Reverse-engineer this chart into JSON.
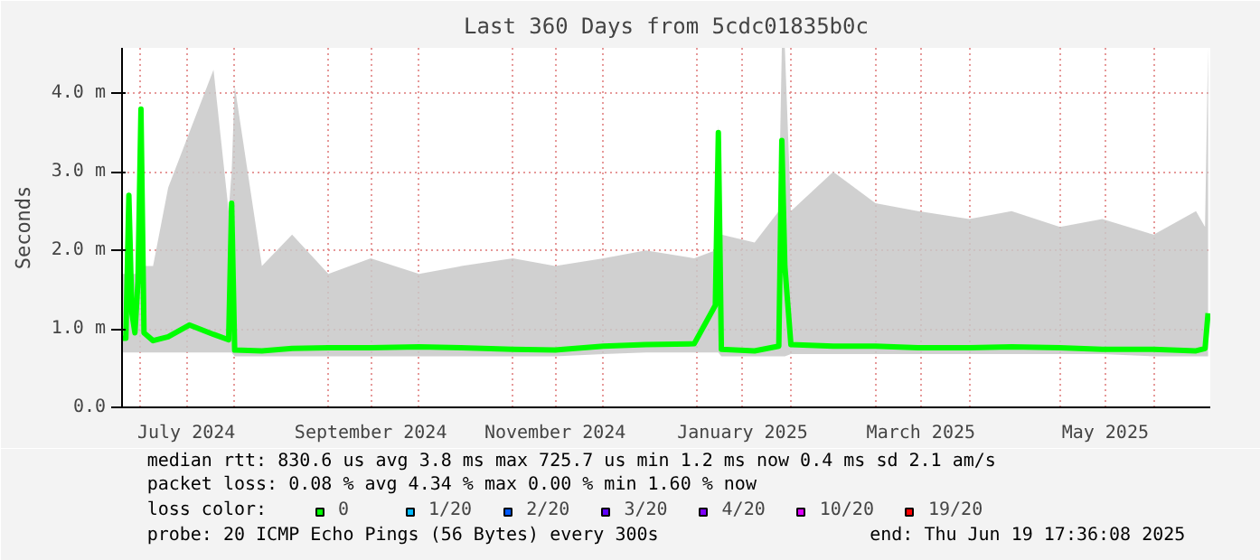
{
  "chart_data": {
    "type": "line",
    "title": "Last 360 Days from 5cdc01835b0c",
    "ylabel": "Seconds",
    "legend_title": "loss color:",
    "legend": "bottom",
    "grid": true,
    "x": [
      "2024-06-25",
      "2024-06-26",
      "2024-06-27",
      "2024-06-28",
      "2024-06-29",
      "2024-06-30",
      "2024-07-01",
      "2024-07-02",
      "2024-07-05",
      "2024-07-10",
      "2024-07-17",
      "2024-07-25",
      "2024-07-30",
      "2024-07-31",
      "2024-08-01",
      "2024-08-10",
      "2024-08-20",
      "2024-09-01",
      "2024-09-15",
      "2024-10-01",
      "2024-10-15",
      "2024-11-01",
      "2024-11-15",
      "2024-12-01",
      "2024-12-15",
      "2024-12-31",
      "2025-01-07",
      "2025-01-08",
      "2025-01-09",
      "2025-01-20",
      "2025-01-28",
      "2025-01-29",
      "2025-01-30",
      "2025-02-01",
      "2025-02-15",
      "2025-03-01",
      "2025-03-15",
      "2025-04-01",
      "2025-04-15",
      "2025-05-01",
      "2025-05-15",
      "2025-06-01",
      "2025-06-15",
      "2025-06-18",
      "2025-06-19"
    ],
    "series": [
      {
        "name": "0",
        "color": "#00ff00",
        "values": [
          0.88,
          0.88,
          2.7,
          1.2,
          0.95,
          1.6,
          3.8,
          0.95,
          0.85,
          0.9,
          1.05,
          0.93,
          0.86,
          2.6,
          0.73,
          0.72,
          0.75,
          0.76,
          0.76,
          0.77,
          0.76,
          0.74,
          0.73,
          0.78,
          0.8,
          0.81,
          1.3,
          3.5,
          0.74,
          0.72,
          0.78,
          3.4,
          1.8,
          0.8,
          0.78,
          0.78,
          0.76,
          0.76,
          0.77,
          0.76,
          0.74,
          0.74,
          0.72,
          0.75,
          1.2
        ],
        "lower": [
          0.7,
          0.7,
          0.7,
          0.7,
          0.7,
          0.7,
          0.7,
          0.7,
          0.7,
          0.7,
          0.7,
          0.7,
          0.7,
          0.7,
          0.65,
          0.65,
          0.65,
          0.65,
          0.65,
          0.65,
          0.65,
          0.65,
          0.65,
          0.68,
          0.7,
          0.7,
          0.7,
          0.7,
          0.65,
          0.65,
          0.65,
          0.65,
          0.65,
          0.68,
          0.68,
          0.68,
          0.68,
          0.68,
          0.68,
          0.68,
          0.68,
          0.65,
          0.65,
          0.65,
          0.65
        ],
        "upper": [
          1.7,
          1.7,
          2.8,
          1.7,
          1.7,
          1.7,
          3.8,
          1.8,
          1.8,
          2.8,
          3.5,
          4.3,
          2.5,
          3.0,
          4.1,
          1.8,
          2.2,
          1.7,
          1.9,
          1.7,
          1.8,
          1.9,
          1.8,
          1.9,
          2.0,
          1.9,
          2.0,
          3.6,
          2.2,
          2.1,
          2.5,
          4.58,
          4.58,
          2.5,
          3.0,
          2.6,
          2.5,
          2.4,
          2.5,
          2.3,
          2.4,
          2.2,
          2.5,
          2.3,
          4.58
        ]
      },
      {
        "name": "1/20",
        "color": "#00b8ff",
        "values": [
          null,
          null,
          null,
          null,
          null,
          null,
          null,
          null,
          null,
          null,
          null,
          null,
          null,
          null,
          null,
          null,
          null,
          null,
          null,
          null,
          null,
          null,
          null,
          null,
          null,
          null,
          null,
          null,
          null,
          null,
          null,
          null,
          null,
          null,
          null,
          null,
          null,
          null,
          null,
          null,
          null,
          null,
          null,
          null,
          null
        ]
      },
      {
        "name": "2/20",
        "color": "#0059ff",
        "values": [
          null,
          null,
          null,
          null,
          null,
          null,
          null,
          null,
          null,
          null,
          null,
          null,
          null,
          null,
          null,
          null,
          null,
          null,
          null,
          null,
          null,
          null,
          null,
          null,
          null,
          null,
          null,
          null,
          null,
          null,
          null,
          null,
          null,
          null,
          null,
          null,
          null,
          null,
          null,
          null,
          null,
          null,
          null,
          null,
          null
        ]
      },
      {
        "name": "3/20",
        "color": "#5e00ff",
        "values": [
          null,
          null,
          null,
          null,
          null,
          null,
          null,
          null,
          null,
          null,
          null,
          null,
          null,
          null,
          null,
          null,
          null,
          null,
          null,
          null,
          null,
          null,
          null,
          null,
          null,
          null,
          null,
          null,
          null,
          null,
          null,
          null,
          null,
          null,
          null,
          null,
          null,
          null,
          null,
          null,
          null,
          null,
          null,
          null,
          null
        ]
      },
      {
        "name": "4/20",
        "color": "#7e00ff",
        "values": [
          null,
          null,
          null,
          null,
          null,
          null,
          null,
          null,
          null,
          null,
          null,
          null,
          null,
          null,
          null,
          null,
          null,
          null,
          null,
          null,
          null,
          null,
          null,
          null,
          null,
          null,
          null,
          null,
          null,
          null,
          null,
          null,
          null,
          null,
          null,
          null,
          null,
          null,
          null,
          null,
          null,
          null,
          null,
          null,
          null
        ]
      },
      {
        "name": "10/20",
        "color": "#dd00ff",
        "values": [
          null,
          null,
          null,
          null,
          null,
          null,
          null,
          null,
          null,
          null,
          null,
          null,
          null,
          null,
          null,
          null,
          null,
          null,
          null,
          null,
          null,
          null,
          null,
          null,
          null,
          null,
          null,
          null,
          null,
          null,
          null,
          null,
          null,
          null,
          null,
          null,
          null,
          null,
          null,
          null,
          null,
          null,
          null,
          null,
          null
        ]
      },
      {
        "name": "19/20",
        "color": "#ff0000",
        "values": [
          null,
          null,
          null,
          null,
          null,
          null,
          null,
          null,
          null,
          null,
          null,
          null,
          null,
          null,
          null,
          null,
          null,
          null,
          null,
          null,
          null,
          null,
          null,
          null,
          null,
          null,
          null,
          null,
          null,
          null,
          null,
          null,
          null,
          null,
          null,
          null,
          null,
          null,
          null,
          null,
          null,
          null,
          null,
          null,
          null
        ]
      }
    ],
    "xlim": [
      "2024-06-24T17:36",
      "2025-06-19T17:36"
    ],
    "xticks": [
      {
        "value": "2024-07-01",
        "label": null
      },
      {
        "value": "2024-07-16",
        "label": "July 2024"
      },
      {
        "value": "2024-08-01",
        "label": null
      },
      {
        "value": "2024-09-01",
        "label": null
      },
      {
        "value": "2024-09-15",
        "label": "September 2024"
      },
      {
        "value": "2024-10-01",
        "label": null
      },
      {
        "value": "2024-11-01",
        "label": null
      },
      {
        "value": "2024-11-15",
        "label": "November 2024"
      },
      {
        "value": "2024-12-01",
        "label": null
      },
      {
        "value": "2025-01-01",
        "label": null
      },
      {
        "value": "2025-01-16",
        "label": "January 2025"
      },
      {
        "value": "2025-02-01",
        "label": null
      },
      {
        "value": "2025-03-01",
        "label": null
      },
      {
        "value": "2025-03-16",
        "label": "March 2025"
      },
      {
        "value": "2025-04-01",
        "label": null
      },
      {
        "value": "2025-05-01",
        "label": null
      },
      {
        "value": "2025-05-16",
        "label": "May 2025"
      },
      {
        "value": "2025-06-01",
        "label": null
      }
    ],
    "ylim": [
      0,
      4.58
    ],
    "yticks": [
      {
        "value": 0,
        "label": "0.0"
      },
      {
        "value": 1,
        "label": "1.0 m"
      },
      {
        "value": 2,
        "label": "2.0 m"
      },
      {
        "value": 3,
        "label": "3.0 m"
      },
      {
        "value": 4,
        "label": "4.0 m"
      }
    ],
    "annotations": [
      "median rtt:  830.6 us avg   3.8 ms max  725.7 us min   1.2 ms now   0.4 ms sd   2.1   am/s",
      "packet loss: 0.08 % avg   4.34 % max   0.00 % min   1.60 % now",
      "probe:       20 ICMP Echo Pings (56 Bytes) every 300s",
      "end: Thu Jun 19 17:36:08 2025"
    ]
  }
}
